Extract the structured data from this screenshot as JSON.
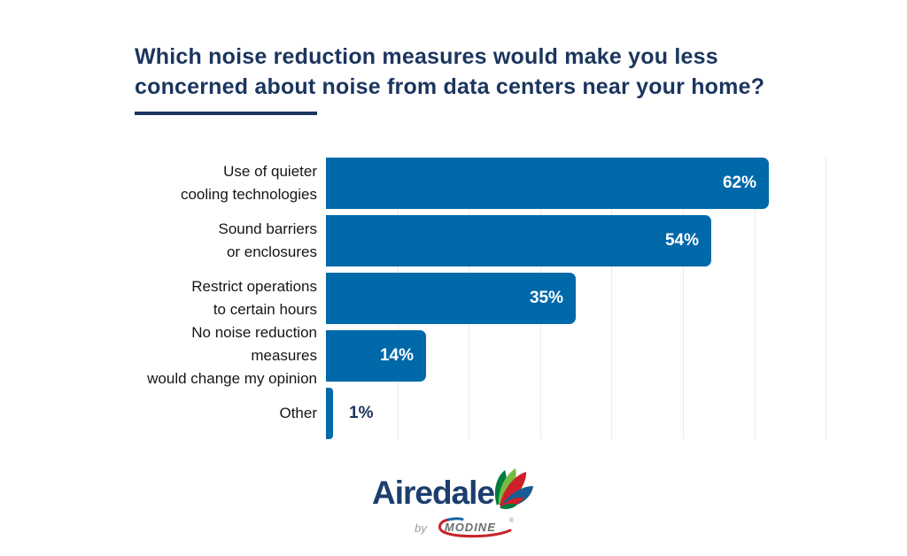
{
  "title": {
    "lines": [
      "Which noise reduction measures would make you less",
      "concerned about noise from data centers near your home?"
    ]
  },
  "chart_data": {
    "type": "bar",
    "orientation": "horizontal",
    "categories": [
      "Use of quieter cooling technologies",
      "Sound barriers or enclosures",
      "Restrict operations to certain hours",
      "No noise reduction measures would change my opinion",
      "Other"
    ],
    "category_lines": [
      [
        "Use of quieter",
        "cooling technologies"
      ],
      [
        "Sound barriers",
        "or enclosures"
      ],
      [
        "Restrict operations",
        "to certain hours"
      ],
      [
        "No noise reduction measures",
        "would change my opinion"
      ],
      [
        "Other"
      ]
    ],
    "values": [
      62,
      54,
      35,
      14,
      1
    ],
    "value_labels": [
      "62%",
      "54%",
      "35%",
      "14%",
      "1%"
    ],
    "title": "Which noise reduction measures would make you less concerned about noise from data centers near your home?",
    "xlabel": "",
    "ylabel": "",
    "xlim": [
      0,
      80
    ],
    "gridline_values": [
      10,
      20,
      30,
      40,
      50,
      60,
      70
    ],
    "grid": "vertical, light gray, behind bars",
    "legend": "none",
    "colors": {
      "bar": "#0069AA",
      "title": "#1B355E",
      "category_label": "#161616",
      "value_label_inside": "#FFFFFF",
      "value_label_outside": "#1B355E",
      "gridline": "#EAEAEC"
    }
  },
  "branding": {
    "brand": "Airedale",
    "byline_prefix": "by",
    "byline_brand": "MODINE",
    "registered_mark": "®",
    "colors": {
      "brand_navy": "#1C3E6E",
      "byline_gray": "#6A6C6E",
      "swoosh_red": "#C8242B",
      "swoosh_blue": "#1465A5",
      "pinwheel_dark_green": "#007A3E",
      "pinwheel_light_green": "#76BC43",
      "pinwheel_red": "#CE2127",
      "pinwheel_blue": "#175D94"
    }
  }
}
